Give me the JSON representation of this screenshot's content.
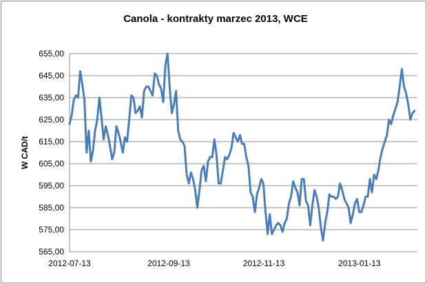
{
  "chart_data": {
    "type": "line",
    "title": "Canola - kontrakty marzec 2013, WCE",
    "xlabel": "",
    "ylabel": "W CAD/t",
    "ylim": [
      565,
      655
    ],
    "yticks": [
      "565,00",
      "575,00",
      "585,00",
      "595,00",
      "605,00",
      "615,00",
      "625,00",
      "635,00",
      "645,00",
      "655,00"
    ],
    "xticks": [
      "2012-07-13",
      "2012-09-13",
      "2012-11-13",
      "2013-01-13"
    ],
    "grid": true,
    "line_color": "#4a7ebb",
    "series": [
      {
        "name": "",
        "values": [
          623,
          627,
          634,
          636,
          635,
          647,
          641,
          634,
          610,
          620,
          606,
          611,
          620,
          625,
          635,
          626,
          616,
          622,
          618,
          613,
          607,
          610,
          622,
          619,
          615,
          610,
          617,
          615,
          625,
          636,
          635,
          628,
          629,
          631,
          626,
          638,
          640,
          640,
          638,
          636,
          646,
          645,
          641,
          639,
          633,
          650,
          655,
          640,
          628,
          632,
          638,
          620,
          616,
          615,
          613,
          600,
          596,
          601,
          598,
          593,
          585,
          593,
          602,
          604,
          597,
          606,
          608,
          608,
          616,
          609,
          596,
          596,
          602,
          608,
          607,
          609,
          612,
          619,
          617,
          615,
          618,
          614,
          614,
          608,
          604,
          592,
          590,
          583,
          591,
          594,
          598,
          596,
          583,
          573,
          582,
          573,
          575,
          577,
          578,
          577,
          574,
          578,
          580,
          587,
          590,
          597,
          594,
          592,
          586,
          598,
          598,
          588,
          586,
          577,
          586,
          593,
          590,
          585,
          576,
          570,
          578,
          583,
          591,
          590,
          590,
          589,
          590,
          596,
          593,
          589,
          587,
          585,
          578,
          582,
          587,
          589,
          583,
          583,
          586,
          590,
          590,
          598,
          592,
          600,
          598,
          602,
          608,
          612,
          615,
          618,
          625,
          623,
          627,
          630,
          633,
          640,
          648,
          640,
          637,
          632,
          625,
          628,
          629
        ]
      }
    ]
  }
}
